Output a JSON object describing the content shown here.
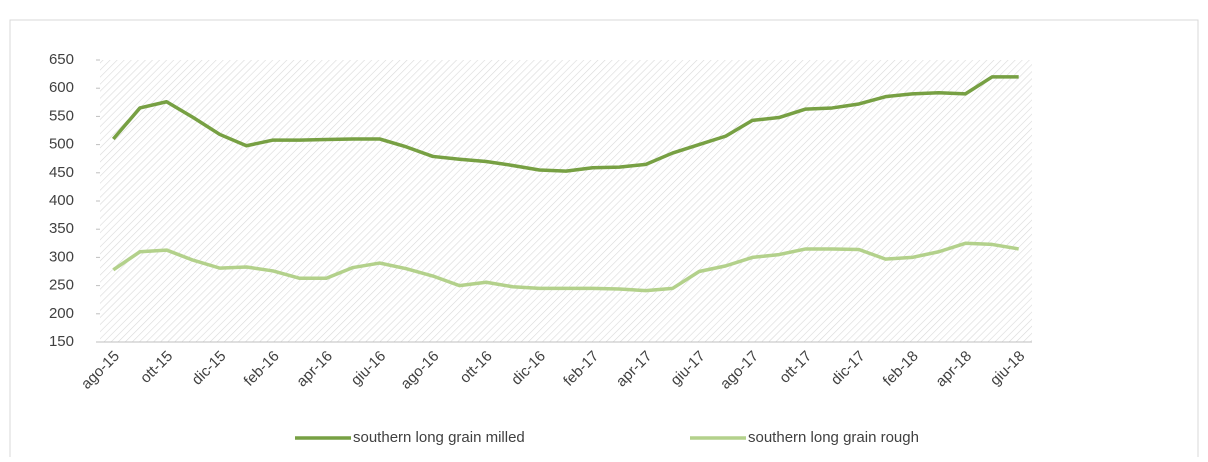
{
  "chart_data": {
    "type": "line",
    "categories": [
      "ago-15",
      null,
      "ott-15",
      null,
      "dic-15",
      null,
      "feb-16",
      null,
      "apr-16",
      null,
      "giu-16",
      null,
      "ago-16",
      null,
      "ott-16",
      null,
      "dic-16",
      null,
      "feb-17",
      null,
      "apr-17",
      null,
      "giu-17",
      null,
      "ago-17",
      null,
      "ott-17",
      null,
      "dic-17",
      null,
      "feb-18",
      null,
      "apr-18",
      null,
      "giu-18"
    ],
    "series": [
      {
        "name": "southern long grain milled",
        "color": "#77a043",
        "values": [
          510,
          565,
          576,
          548,
          518,
          498,
          508,
          508,
          509,
          510,
          510,
          496,
          479,
          474,
          470,
          463,
          455,
          453,
          459,
          460,
          465,
          485,
          500,
          515,
          543,
          548,
          563,
          565,
          572,
          585,
          590,
          592,
          590,
          620,
          620
        ]
      },
      {
        "name": "southern long grain rough",
        "color": "#b3d18b",
        "values": [
          278,
          310,
          313,
          295,
          281,
          283,
          276,
          263,
          263,
          282,
          290,
          280,
          267,
          250,
          256,
          248,
          245,
          245,
          245,
          244,
          241,
          245,
          275,
          285,
          300,
          305,
          315,
          315,
          314,
          297,
          300,
          310,
          325,
          323,
          315
        ]
      }
    ],
    "ylim": [
      150,
      650
    ],
    "yticks": [
      150,
      200,
      250,
      300,
      350,
      400,
      450,
      500,
      550,
      600,
      650
    ],
    "legend": "bottom"
  }
}
